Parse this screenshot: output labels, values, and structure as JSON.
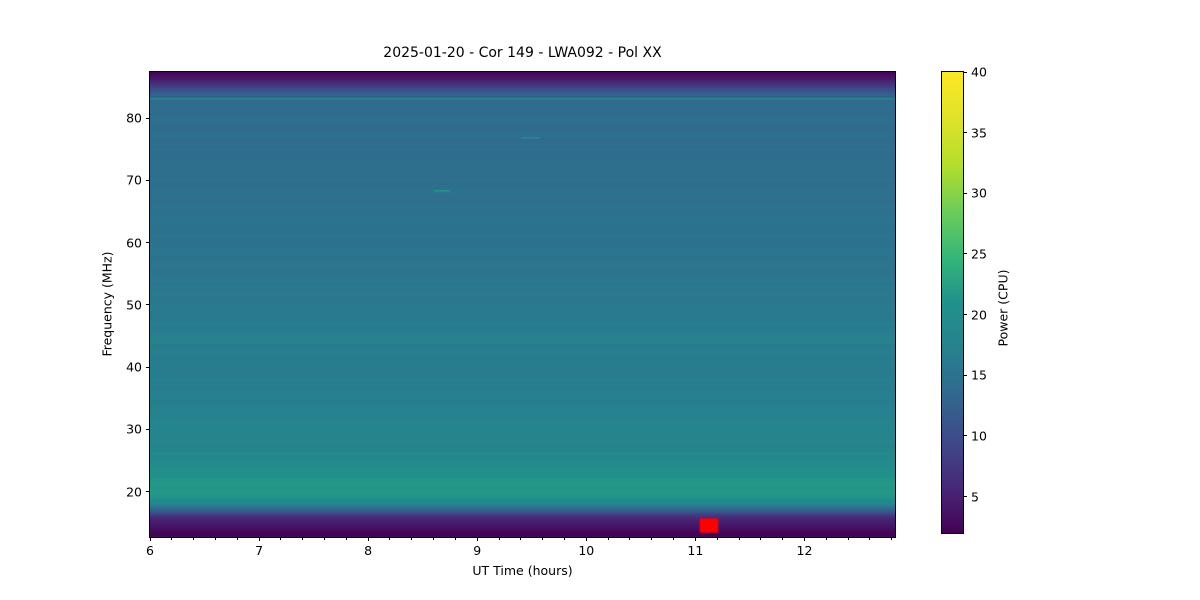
{
  "figure": {
    "background": "#ffffff",
    "text_color": "#000000"
  },
  "chart_data": {
    "type": "heatmap",
    "title": "2025-01-20 - Cor 149 - LWA092 - Pol XX",
    "xlabel": "UT Time (hours)",
    "ylabel": "Frequency (MHz)",
    "x_range": [
      6.0,
      12.83
    ],
    "x_ticks": [
      6,
      7,
      8,
      9,
      10,
      11,
      12
    ],
    "x_minor_step": 0.2,
    "y_range": [
      12.7,
      87.4
    ],
    "y_ticks": [
      20,
      30,
      40,
      50,
      60,
      70,
      80
    ],
    "grid": false,
    "colorbar": {
      "label": "Power (CPU)",
      "min": 2,
      "max": 40,
      "ticks": [
        5,
        10,
        15,
        20,
        25,
        30,
        35,
        40
      ],
      "colormap": "viridis"
    },
    "spectrum_profile": {
      "comment_freq_mhz_vs_power_cpu": "background dynamic spectrum is nearly uniform in time; power varies with frequency",
      "freq_mhz": [
        87.4,
        86.8,
        86.2,
        85.6,
        85.0,
        84.4,
        83.8,
        83.0,
        82.0,
        80.0,
        78.0,
        76.0,
        74.0,
        72.0,
        70.0,
        68.0,
        66.0,
        64.0,
        62.0,
        60.0,
        58.0,
        56.0,
        54.0,
        52.0,
        50.0,
        48.0,
        46.0,
        44.8,
        44.2,
        43.4,
        42.0,
        40.0,
        38.0,
        36.0,
        34.0,
        32.0,
        30.5,
        29.0,
        27.5,
        26.0,
        24.5,
        23.0,
        22.0,
        21.0,
        20.2,
        19.4,
        18.6,
        17.9,
        17.3,
        16.7,
        16.1,
        15.5,
        14.8,
        14.0,
        13.3,
        12.7
      ],
      "power_cpu": [
        2.2,
        3.2,
        4.5,
        6.5,
        8.5,
        10.5,
        12.5,
        13.6,
        13.8,
        14.2,
        14.0,
        14.3,
        14.2,
        14.5,
        14.4,
        14.7,
        14.6,
        15.0,
        15.1,
        15.0,
        15.3,
        15.3,
        15.6,
        15.8,
        16.0,
        16.2,
        16.5,
        17.3,
        17.4,
        16.5,
        16.4,
        16.5,
        16.6,
        16.8,
        17.0,
        17.3,
        18.0,
        18.2,
        17.9,
        18.6,
        19.4,
        20.6,
        21.2,
        21.6,
        21.8,
        21.5,
        20.3,
        17.5,
        14.0,
        10.5,
        7.5,
        5.5,
        4.2,
        3.3,
        2.6,
        2.2
      ]
    },
    "features": [
      {
        "name": "rfi-line-83mhz",
        "kind": "line",
        "t": [
          6.0,
          12.83
        ],
        "freq": 83.3,
        "power": 20
      },
      {
        "name": "rfi-dash-77mhz",
        "kind": "line",
        "t": [
          9.4,
          9.58
        ],
        "freq": 76.9,
        "power": 20
      },
      {
        "name": "rfi-dash-68mhz",
        "kind": "line",
        "t": [
          8.6,
          8.75
        ],
        "freq": 68.4,
        "power": 22
      },
      {
        "name": "saturated-data-marker",
        "kind": "rect",
        "t": [
          11.04,
          11.21
        ],
        "freq": [
          13.4,
          15.7
        ],
        "color": "#ff0000"
      }
    ]
  }
}
